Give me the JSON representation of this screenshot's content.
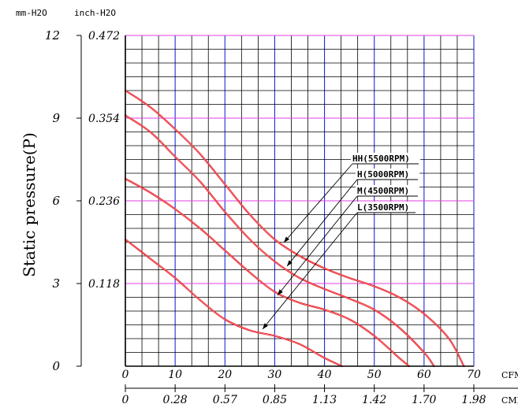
{
  "chart_data": {
    "type": "line",
    "ylabel": "Static pressure(P)",
    "y_units": [
      "mm-H2O",
      "inch-H2O"
    ],
    "y_ticks_mm": [
      "0",
      "3",
      "6",
      "9",
      "12"
    ],
    "y_ticks_inch": [
      "0.118",
      "0.236",
      "0.354",
      "0.472"
    ],
    "x_unit_cfm": "CFM",
    "x_ticks_cfm": [
      "0",
      "10",
      "20",
      "30",
      "40",
      "50",
      "60",
      "70"
    ],
    "x_unit_cmm": "CMM",
    "x_ticks_cmm": [
      "0",
      "0.28",
      "0.57",
      "0.85",
      "1.13",
      "1.42",
      "1.70",
      "1.98"
    ],
    "xlim": [
      0,
      70
    ],
    "ylim": [
      0,
      12
    ],
    "grid": true,
    "series": [
      {
        "name": "HH(5500RPM)",
        "color": "#e4141e",
        "x": [
          0,
          5,
          10,
          15,
          20,
          25,
          30,
          35,
          40,
          45,
          50,
          55,
          60,
          65,
          68
        ],
        "y": [
          10.0,
          9.4,
          8.6,
          7.7,
          6.6,
          5.5,
          4.6,
          4.0,
          3.55,
          3.2,
          2.9,
          2.5,
          1.9,
          1.0,
          0.0
        ]
      },
      {
        "name": "H(5000RPM)",
        "color": "#e4141e",
        "x": [
          0,
          5,
          10,
          15,
          20,
          25,
          30,
          35,
          40,
          45,
          50,
          55,
          60,
          62
        ],
        "y": [
          9.1,
          8.5,
          7.6,
          6.7,
          5.6,
          4.6,
          3.8,
          3.2,
          2.8,
          2.45,
          2.05,
          1.4,
          0.5,
          0.0
        ]
      },
      {
        "name": "M(4500RPM)",
        "color": "#e4141e",
        "x": [
          0,
          5,
          10,
          15,
          20,
          25,
          30,
          35,
          40,
          45,
          50,
          55,
          57
        ],
        "y": [
          6.8,
          6.3,
          5.7,
          5.0,
          4.2,
          3.4,
          2.7,
          2.3,
          2.05,
          1.7,
          1.1,
          0.3,
          0.0
        ]
      },
      {
        "name": "L(3500RPM)",
        "color": "#e4141e",
        "x": [
          0,
          5,
          10,
          15,
          20,
          25,
          30,
          35,
          40,
          43.5
        ],
        "y": [
          4.6,
          3.9,
          3.2,
          2.4,
          1.7,
          1.3,
          1.1,
          0.8,
          0.3,
          0.0
        ]
      }
    ],
    "colors": {
      "grid_minor": "#000000",
      "grid_cfm_major": "#1e2ad6",
      "grid_pressure_major": "#e040e0",
      "curves": "#e4141e"
    }
  }
}
